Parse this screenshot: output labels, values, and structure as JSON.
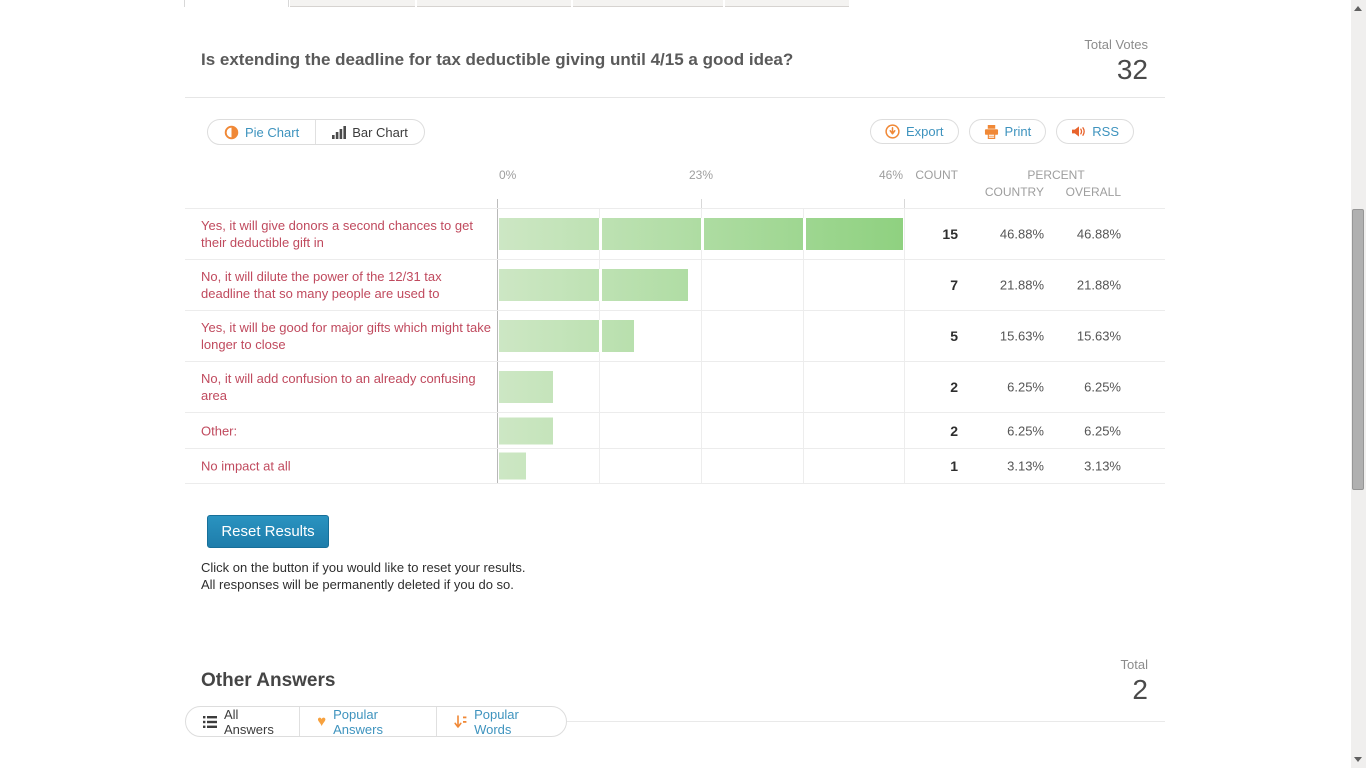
{
  "header": {
    "question": "Is extending the deadline for tax deductible giving until 4/15 a good idea?",
    "total_votes_label": "Total Votes",
    "total_votes": "32"
  },
  "toolbar": {
    "pie_chart_label": "Pie Chart",
    "bar_chart_label": "Bar Chart",
    "export_label": "Export",
    "print_label": "Print",
    "rss_label": "RSS"
  },
  "results_table": {
    "axis": {
      "ticks": [
        "0%",
        "23%",
        "46%"
      ],
      "max_percent": 46.88
    },
    "columns": {
      "count": "COUNT",
      "percent": "PERCENT",
      "country": "COUNTRY",
      "overall": "OVERALL"
    },
    "rows": [
      {
        "label": "Yes, it will give donors a second chances to get their deductible gift in",
        "count": "15",
        "country": "46.88%",
        "overall": "46.88%",
        "percent_value": 46.88
      },
      {
        "label": "No, it will dilute the power of the 12/31 tax deadline that so many people are used to",
        "count": "7",
        "country": "21.88%",
        "overall": "21.88%",
        "percent_value": 21.88
      },
      {
        "label": "Yes, it will be good for major gifts which might take longer to close",
        "count": "5",
        "country": "15.63%",
        "overall": "15.63%",
        "percent_value": 15.63
      },
      {
        "label": "No, it will add confusion to an already confusing area",
        "count": "2",
        "country": "6.25%",
        "overall": "6.25%",
        "percent_value": 6.25
      },
      {
        "label": "Other:",
        "count": "2",
        "country": "6.25%",
        "overall": "6.25%",
        "percent_value": 6.25
      },
      {
        "label": "No impact at all",
        "count": "1",
        "country": "3.13%",
        "overall": "3.13%",
        "percent_value": 3.13
      }
    ]
  },
  "chart_data": {
    "type": "bar",
    "categories": [
      "Yes, it will give donors a second chances to get their deductible gift in",
      "No, it will dilute the power of the 12/31 tax deadline that so many people are used to",
      "Yes, it will be good for major gifts which might take longer to close",
      "No, it will add confusion to an already confusing area",
      "Other:",
      "No impact at all"
    ],
    "values": [
      46.88,
      21.88,
      15.63,
      6.25,
      6.25,
      3.13
    ],
    "counts": [
      15,
      7,
      5,
      2,
      2,
      1
    ],
    "xlim": [
      0,
      46.88
    ],
    "x_ticks": [
      "0%",
      "23%",
      "46%"
    ],
    "orientation": "horizontal"
  },
  "reset": {
    "button_label": "Reset Results",
    "line1": "Click on the button if you would like to reset your results.",
    "line2": "All responses will be permanently deleted if you do so."
  },
  "other_answers": {
    "title": "Other Answers",
    "total_label": "Total",
    "total": "2",
    "all_answers_label": "All Answers",
    "popular_answers_label": "Popular Answers",
    "popular_words_label": "Popular Words"
  },
  "colors": {
    "bar_gradient_start": "#cde7c4",
    "bar_gradient_end": "#8fd180",
    "answer_text": "#c04a5e",
    "link_blue": "#3e93be",
    "accent_orange": "#f08836",
    "reset_button_blue": "#2288b5"
  }
}
